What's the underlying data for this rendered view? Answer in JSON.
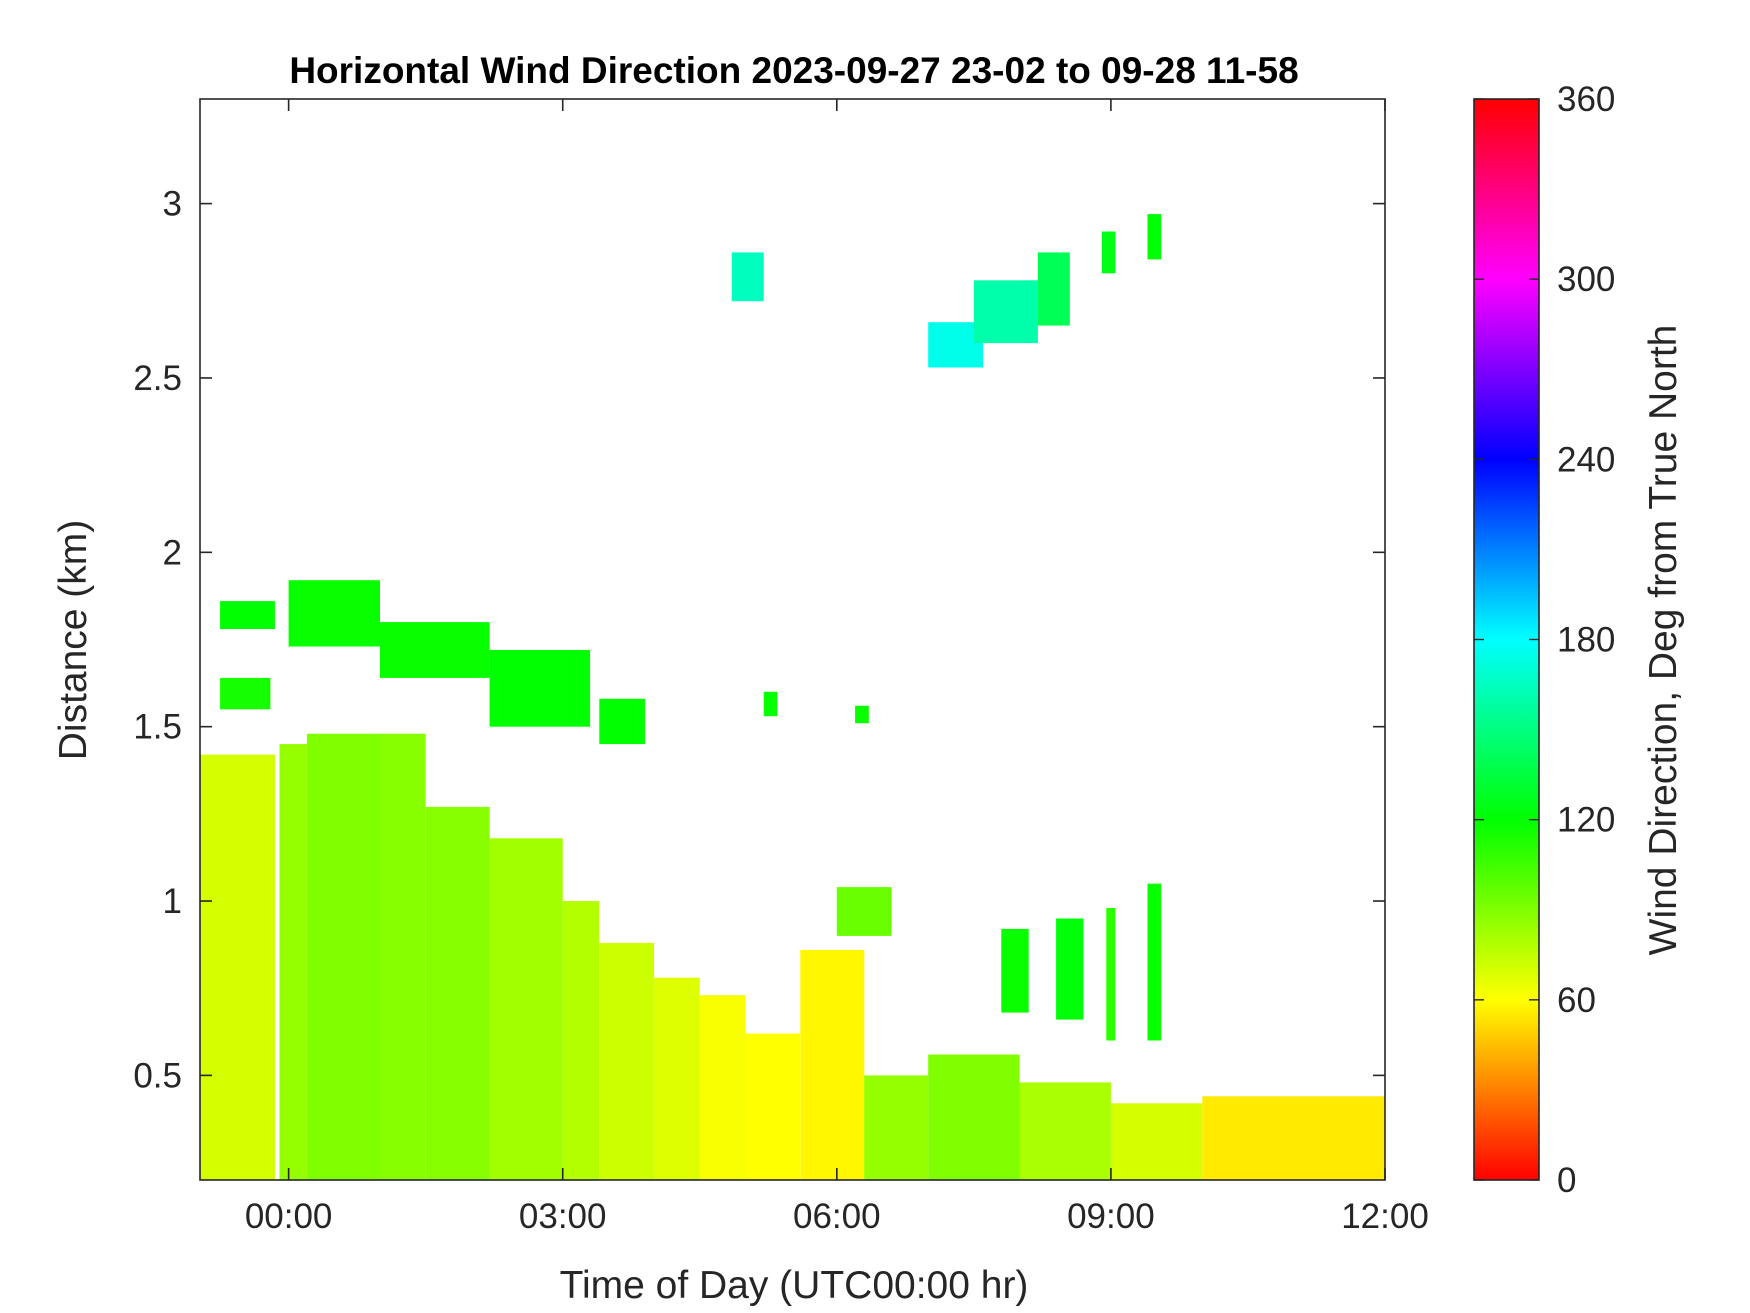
{
  "chart_data": {
    "type": "heatmap",
    "title": "Horizontal Wind Direction 2023-09-27 23-02 to 09-28 11-58",
    "xlabel": "Time of Day (UTC00:00 hr)",
    "ylabel": "Distance (km)",
    "colorbar_label": "Wind Direction, Deg from True North",
    "x_ticks": [
      "00:00",
      "03:00",
      "06:00",
      "09:00",
      "12:00"
    ],
    "x_tick_values": [
      0,
      3,
      6,
      9,
      12
    ],
    "y_ticks": [
      "0.5",
      "1",
      "1.5",
      "2",
      "2.5",
      "3"
    ],
    "y_tick_values": [
      0.5,
      1,
      1.5,
      2,
      2.5,
      3
    ],
    "colorbar_ticks": [
      "0",
      "60",
      "120",
      "180",
      "240",
      "300",
      "360"
    ],
    "colorbar_tick_values": [
      0,
      60,
      120,
      180,
      240,
      300,
      360
    ],
    "xlim": [
      -0.97,
      12.0
    ],
    "ylim": [
      0.2,
      3.3
    ],
    "clim": [
      0,
      360
    ],
    "colormap": [
      "#ff0000",
      "#ffff00",
      "#00ff00",
      "#00ffff",
      "#0000ff",
      "#ff00ff",
      "#ff0000"
    ],
    "grid": false,
    "regions": [
      {
        "x0": -0.97,
        "x1": -0.15,
        "y_top": 1.42,
        "value": 70
      },
      {
        "x0": -0.1,
        "x1": 0.2,
        "y_top": 1.45,
        "value": 85
      },
      {
        "x0": 0.2,
        "x1": 1.0,
        "y_top": 1.48,
        "value": 90
      },
      {
        "x0": 1.0,
        "x1": 1.5,
        "y_top": 1.48,
        "value": 88
      },
      {
        "x0": 1.5,
        "x1": 2.2,
        "y_top": 1.27,
        "value": 88
      },
      {
        "x0": 2.2,
        "x1": 3.0,
        "y_top": 1.18,
        "value": 82
      },
      {
        "x0": 3.0,
        "x1": 3.4,
        "y_top": 1.0,
        "value": 78
      },
      {
        "x0": 3.4,
        "x1": 4.0,
        "y_top": 0.88,
        "value": 72
      },
      {
        "x0": 4.0,
        "x1": 4.5,
        "y_top": 0.78,
        "value": 68
      },
      {
        "x0": 4.5,
        "x1": 5.0,
        "y_top": 0.73,
        "value": 62
      },
      {
        "x0": 5.0,
        "x1": 5.6,
        "y_top": 0.62,
        "value": 60
      },
      {
        "x0": 5.6,
        "x1": 6.3,
        "y_top": 0.86,
        "value": 58
      },
      {
        "x0": 6.3,
        "x1": 7.0,
        "y_top": 0.5,
        "value": 85
      },
      {
        "x0": 7.0,
        "x1": 8.0,
        "y_top": 0.56,
        "value": 90
      },
      {
        "x0": 8.0,
        "x1": 9.0,
        "y_top": 0.48,
        "value": 80
      },
      {
        "x0": 9.0,
        "x1": 10.0,
        "y_top": 0.42,
        "value": 70
      },
      {
        "x0": 10.0,
        "x1": 12.0,
        "y_top": 0.44,
        "value": 55
      },
      {
        "x0": -0.75,
        "x1": -0.15,
        "y_top": 1.86,
        "y_bottom": 1.78,
        "value": 120
      },
      {
        "x0": 0.0,
        "x1": 1.0,
        "y_top": 1.92,
        "y_bottom": 1.73,
        "value": 118
      },
      {
        "x0": 1.0,
        "x1": 2.2,
        "y_top": 1.8,
        "y_bottom": 1.64,
        "value": 118
      },
      {
        "x0": 2.2,
        "x1": 3.3,
        "y_top": 1.72,
        "y_bottom": 1.5,
        "value": 120
      },
      {
        "x0": 3.4,
        "x1": 3.9,
        "y_top": 1.58,
        "y_bottom": 1.45,
        "value": 120
      },
      {
        "x0": -0.75,
        "x1": -0.2,
        "y_top": 1.64,
        "y_bottom": 1.55,
        "value": 115
      },
      {
        "x0": 7.8,
        "x1": 8.1,
        "y_top": 0.92,
        "y_bottom": 0.68,
        "value": 118
      },
      {
        "x0": 8.4,
        "x1": 8.7,
        "y_top": 0.95,
        "y_bottom": 0.66,
        "value": 122
      },
      {
        "x0": 8.95,
        "x1": 9.05,
        "y_top": 0.98,
        "y_bottom": 0.6,
        "value": 110
      },
      {
        "x0": 9.4,
        "x1": 9.55,
        "y_top": 1.05,
        "y_bottom": 0.6,
        "value": 118
      },
      {
        "x0": 6.0,
        "x1": 6.6,
        "y_top": 1.04,
        "y_bottom": 0.9,
        "value": 95
      },
      {
        "x0": 7.0,
        "x1": 7.6,
        "y_top": 2.66,
        "y_bottom": 2.53,
        "value": 175
      },
      {
        "x0": 7.5,
        "x1": 8.2,
        "y_top": 2.78,
        "y_bottom": 2.6,
        "value": 160
      },
      {
        "x0": 8.2,
        "x1": 8.55,
        "y_top": 2.86,
        "y_bottom": 2.65,
        "value": 140
      },
      {
        "x0": 8.9,
        "x1": 9.05,
        "y_top": 2.92,
        "y_bottom": 2.8,
        "value": 125
      },
      {
        "x0": 9.4,
        "x1": 9.55,
        "y_top": 2.97,
        "y_bottom": 2.84,
        "value": 120
      },
      {
        "x0": 4.85,
        "x1": 5.2,
        "y_top": 2.86,
        "y_bottom": 2.72,
        "value": 165
      },
      {
        "x0": 5.2,
        "x1": 5.35,
        "y_top": 1.6,
        "y_bottom": 1.53,
        "value": 118
      },
      {
        "x0": 6.2,
        "x1": 6.35,
        "y_top": 1.56,
        "y_bottom": 1.51,
        "value": 118
      }
    ]
  }
}
